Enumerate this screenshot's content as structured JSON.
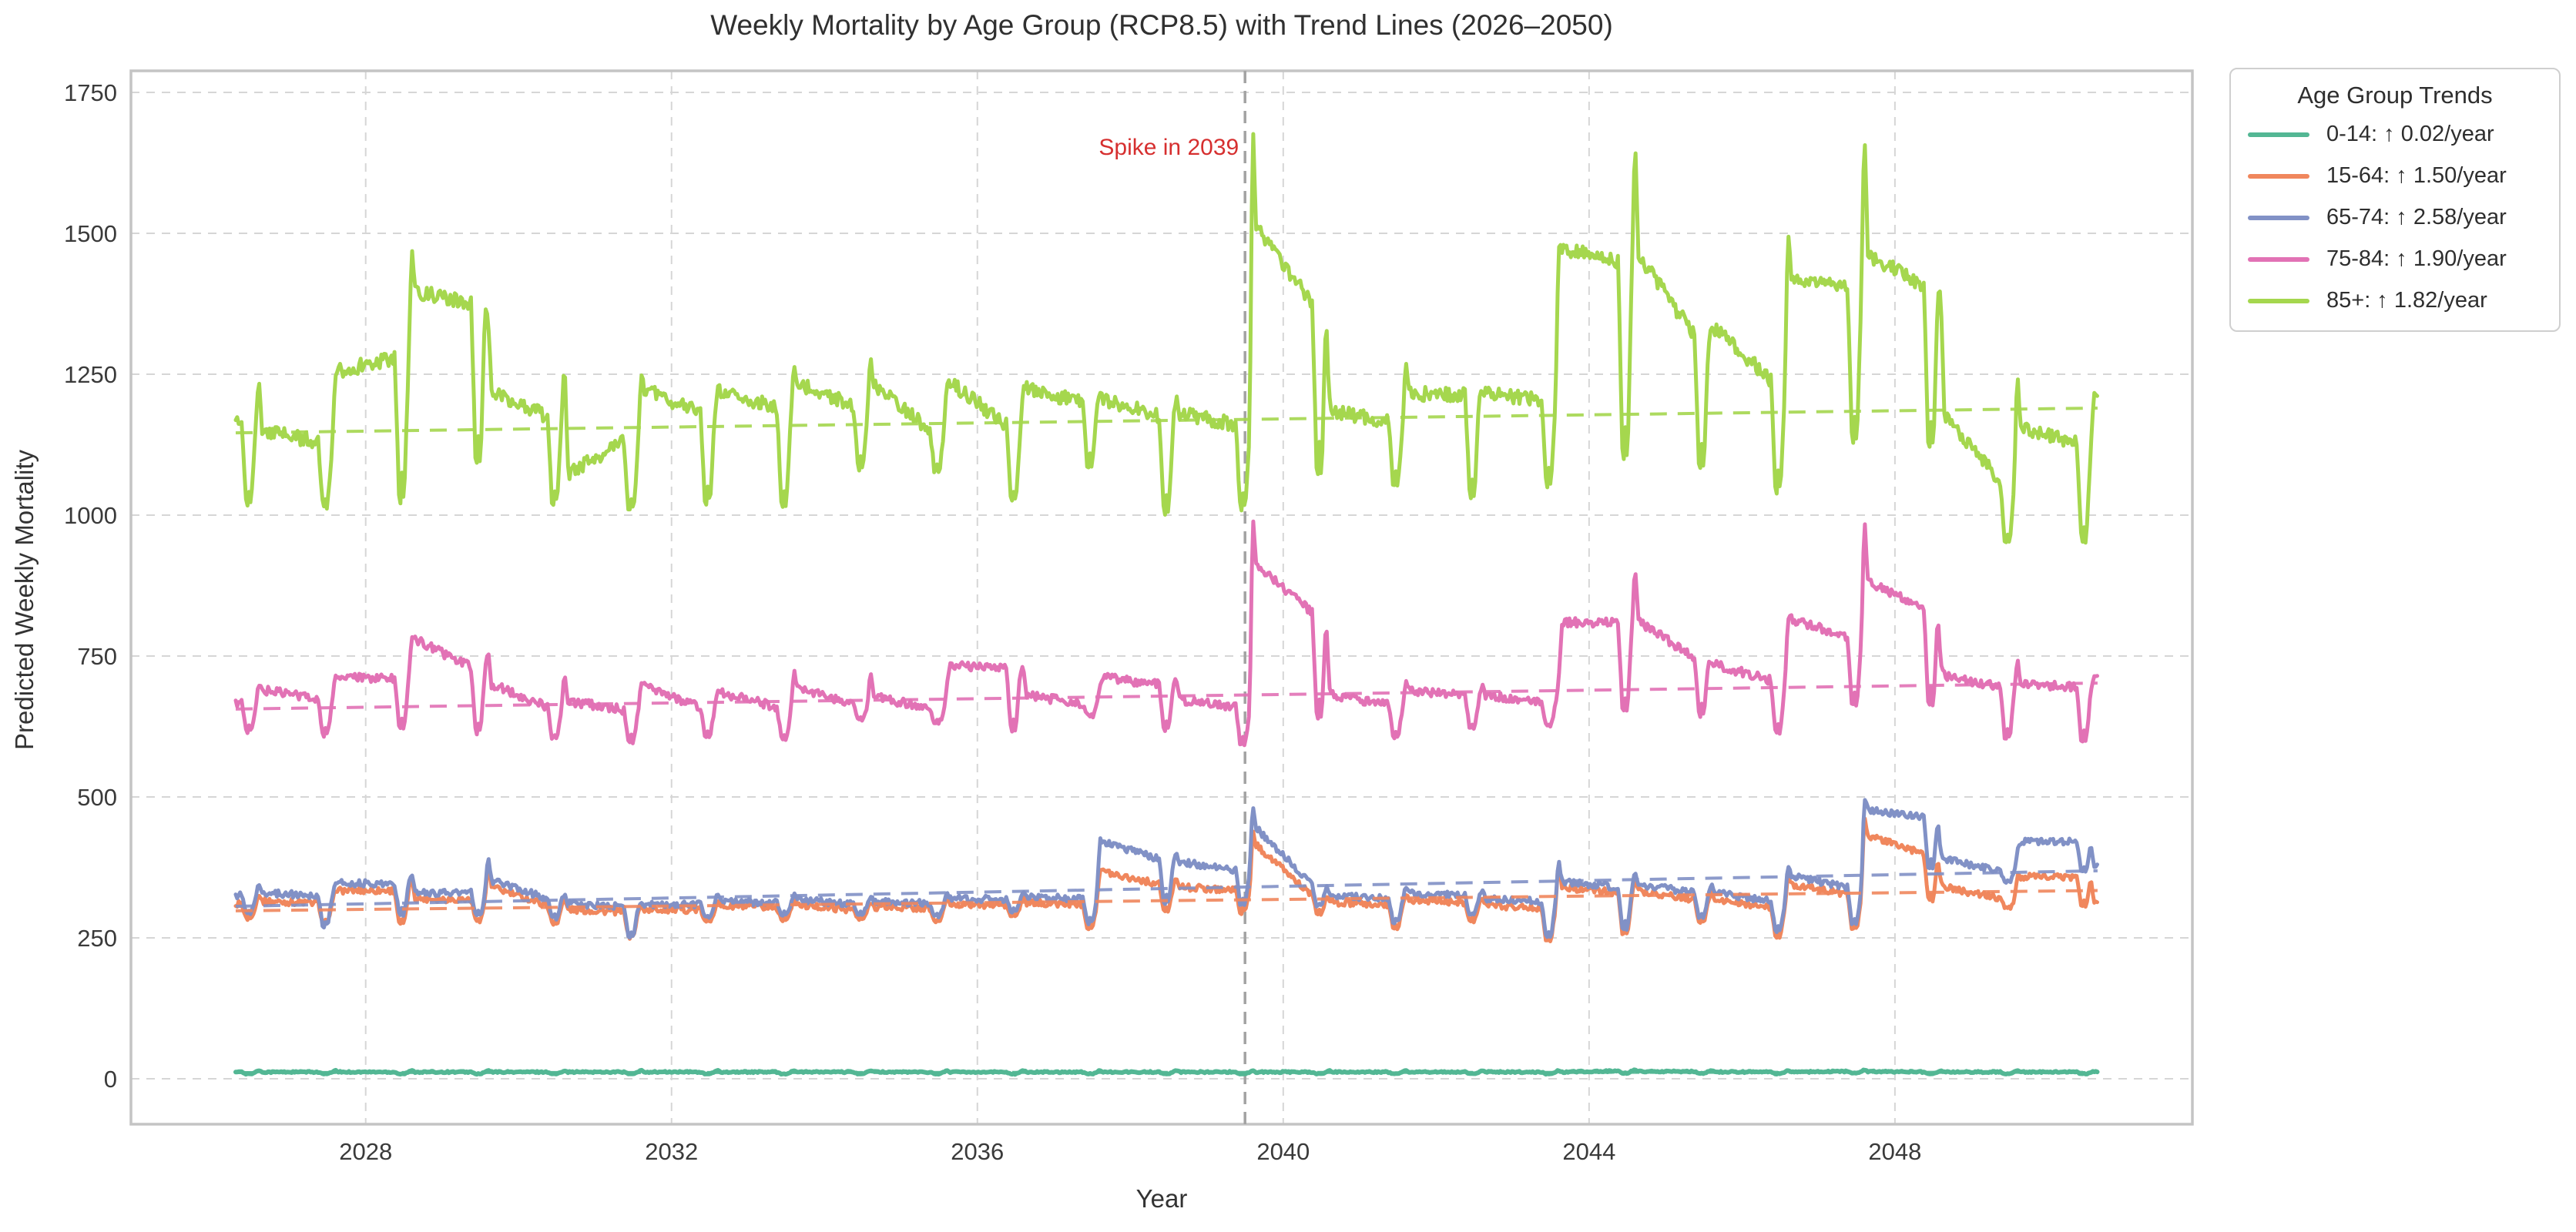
{
  "chart_data": {
    "type": "line",
    "title": "Weekly Mortality by Age Group (RCP8.5) with Trend Lines (2026–2050)",
    "xlabel": "Year",
    "ylabel": "Predicted Weekly Mortality",
    "legend_title": "Age Group Trends",
    "legend_position": "outside-top-right",
    "grid": true,
    "x_ticks": [
      2028,
      2032,
      2036,
      2040,
      2044,
      2048
    ],
    "y_ticks": [
      0,
      250,
      500,
      750,
      1000,
      1250,
      1500,
      1750
    ],
    "xlim": [
      2024.93,
      2051.89
    ],
    "ylim": [
      -80.6,
      1788.3
    ],
    "x_start": 2026.3,
    "x_end": 2050.65,
    "points_per_year": 52,
    "vline": {
      "x": 2039.5,
      "color": "#a3a3a3",
      "style": "dashed"
    },
    "annotation": {
      "text": "Spike in 2039",
      "color": "#d62f2f",
      "x": 2039.4,
      "y": 1650
    },
    "cycles_format": [
      "year",
      "plateau_end_value",
      "summer_dip_value",
      "winter_spike_value",
      "post_spike_value"
    ],
    "cycle_phases": {
      "drop": 0.38,
      "dip": 0.445,
      "jag1": 0.468,
      "jag2": 0.5,
      "recover": 0.56,
      "spike": 0.6,
      "post": 0.645
    },
    "series": [
      {
        "name": "0-14",
        "legend_label": "0-14: ↑ 0.02/year",
        "color": "#53b794",
        "width": 6,
        "noise": 1.3,
        "trend": {
          "start": 11,
          "end": 11.5,
          "rate_per_year": 0.02
        },
        "cycles": [
          [
            2026,
            12,
            8,
            15,
            12
          ],
          [
            2027,
            12,
            8,
            15,
            12
          ],
          [
            2028,
            12,
            8,
            15,
            12
          ],
          [
            2029,
            12,
            8,
            15,
            12
          ],
          [
            2030,
            12,
            8,
            15,
            12
          ],
          [
            2031,
            12,
            8,
            15,
            12
          ],
          [
            2032,
            12,
            8,
            15,
            12
          ],
          [
            2033,
            12,
            8,
            15,
            12
          ],
          [
            2034,
            12,
            8,
            15,
            12
          ],
          [
            2035,
            12,
            8,
            15,
            12
          ],
          [
            2036,
            12,
            8,
            15,
            12
          ],
          [
            2037,
            12,
            8,
            15,
            12
          ],
          [
            2038,
            12,
            8,
            15,
            12
          ],
          [
            2039,
            12,
            8,
            15,
            12
          ],
          [
            2040,
            12,
            8,
            15,
            12
          ],
          [
            2041,
            12,
            8,
            15,
            12
          ],
          [
            2042,
            12,
            8,
            15,
            12
          ],
          [
            2043,
            12,
            8,
            15,
            12
          ],
          [
            2044,
            14,
            9,
            16,
            13
          ],
          [
            2045,
            13,
            9,
            15,
            12
          ],
          [
            2046,
            12,
            8,
            15,
            12
          ],
          [
            2047,
            13,
            9,
            16,
            13
          ],
          [
            2048,
            12,
            8,
            15,
            12
          ],
          [
            2049,
            12,
            8,
            15,
            12
          ],
          [
            2050,
            12,
            8,
            13,
            12
          ]
        ]
      },
      {
        "name": "15-64",
        "legend_label": "15-64: ↑ 1.50/year",
        "color": "#f0875d",
        "width": 5,
        "noise": 6,
        "trend": {
          "start": 298,
          "end": 334,
          "rate_per_year": 1.5
        },
        "cycles": [
          [
            2026,
            310,
            280,
            330,
            315
          ],
          [
            2027,
            312,
            270,
            335,
            334
          ],
          [
            2028,
            334,
            265,
            363,
            320
          ],
          [
            2029,
            318,
            275,
            385,
            340
          ],
          [
            2030,
            308,
            270,
            320,
            300
          ],
          [
            2031,
            296,
            245,
            308,
            300
          ],
          [
            2032,
            300,
            275,
            320,
            306
          ],
          [
            2033,
            303,
            280,
            320,
            308
          ],
          [
            2034,
            300,
            280,
            315,
            305
          ],
          [
            2035,
            302,
            275,
            320,
            310
          ],
          [
            2036,
            308,
            285,
            325,
            312
          ],
          [
            2037,
            310,
            262,
            372,
            368
          ],
          [
            2038,
            345,
            290,
            360,
            340
          ],
          [
            2039,
            335,
            290,
            440,
            415
          ],
          [
            2040,
            325,
            288,
            318,
            312
          ],
          [
            2041,
            308,
            262,
            328,
            318
          ],
          [
            2042,
            313,
            275,
            322,
            308
          ],
          [
            2043,
            303,
            238,
            390,
            340
          ],
          [
            2044,
            330,
            245,
            360,
            333
          ],
          [
            2045,
            318,
            270,
            333,
            318
          ],
          [
            2046,
            303,
            245,
            365,
            345
          ],
          [
            2047,
            328,
            255,
            470,
            432
          ],
          [
            2048,
            398,
            305,
            350,
            340
          ],
          [
            2049,
            320,
            300,
            360,
            358
          ],
          [
            2050,
            358,
            300,
            315,
            315
          ]
        ]
      },
      {
        "name": "65-74",
        "legend_label": "65-74: ↑ 2.58/year",
        "color": "#8191c6",
        "width": 5,
        "noise": 6,
        "trend": {
          "start": 306,
          "end": 369,
          "rate_per_year": 2.58
        },
        "cycles": [
          [
            2026,
            325,
            290,
            346,
            330
          ],
          [
            2027,
            325,
            264,
            350,
            347
          ],
          [
            2028,
            346,
            284,
            368,
            330
          ],
          [
            2029,
            330,
            284,
            397,
            352
          ],
          [
            2030,
            320,
            279,
            330,
            310
          ],
          [
            2031,
            305,
            245,
            315,
            308
          ],
          [
            2032,
            310,
            285,
            330,
            315
          ],
          [
            2033,
            312,
            290,
            330,
            318
          ],
          [
            2034,
            310,
            290,
            325,
            315
          ],
          [
            2035,
            312,
            285,
            330,
            320
          ],
          [
            2036,
            318,
            295,
            335,
            322
          ],
          [
            2037,
            320,
            270,
            425,
            420
          ],
          [
            2038,
            390,
            300,
            400,
            385
          ],
          [
            2039,
            370,
            300,
            490,
            445
          ],
          [
            2040,
            345,
            300,
            330,
            325
          ],
          [
            2041,
            320,
            272,
            340,
            330
          ],
          [
            2042,
            325,
            285,
            335,
            320
          ],
          [
            2043,
            315,
            245,
            390,
            350
          ],
          [
            2044,
            340,
            255,
            370,
            345
          ],
          [
            2045,
            330,
            280,
            345,
            330
          ],
          [
            2046,
            315,
            255,
            380,
            360
          ],
          [
            2047,
            340,
            265,
            500,
            477
          ],
          [
            2048,
            465,
            360,
            400,
            390
          ],
          [
            2049,
            368,
            345,
            405,
            421
          ],
          [
            2050,
            421,
            362,
            378,
            378
          ]
        ]
      },
      {
        "name": "75-84",
        "legend_label": "75-84: ↑ 1.90/year",
        "color": "#e272b5",
        "width": 5,
        "noise": 8,
        "trend": {
          "start": 656,
          "end": 702,
          "rate_per_year": 1.9
        },
        "cycles": [
          [
            2026,
            665,
            608,
            700,
            690
          ],
          [
            2027,
            675,
            600,
            718,
            712
          ],
          [
            2028,
            710,
            612,
            788,
            780
          ],
          [
            2029,
            730,
            600,
            760,
            700
          ],
          [
            2030,
            660,
            595,
            725,
            670
          ],
          [
            2031,
            655,
            590,
            700,
            695
          ],
          [
            2032,
            660,
            600,
            692,
            685
          ],
          [
            2033,
            660,
            595,
            725,
            695
          ],
          [
            2034,
            665,
            635,
            722,
            680
          ],
          [
            2035,
            655,
            630,
            700,
            732
          ],
          [
            2036,
            730,
            605,
            730,
            680
          ],
          [
            2037,
            665,
            640,
            700,
            712
          ],
          [
            2038,
            700,
            610,
            715,
            672
          ],
          [
            2039,
            660,
            585,
            1000,
            912
          ],
          [
            2040,
            828,
            612,
            700,
            680
          ],
          [
            2041,
            665,
            595,
            705,
            690
          ],
          [
            2042,
            680,
            615,
            700,
            680
          ],
          [
            2043,
            670,
            618,
            700,
            810
          ],
          [
            2044,
            810,
            630,
            914,
            811
          ],
          [
            2045,
            748,
            630,
            735,
            735
          ],
          [
            2046,
            707,
            602,
            820,
            815
          ],
          [
            2047,
            785,
            644,
            1000,
            883
          ],
          [
            2048,
            835,
            640,
            735,
            715
          ],
          [
            2049,
            695,
            591,
            746,
            700
          ],
          [
            2050,
            695,
            586,
            714,
            714
          ]
        ]
      },
      {
        "name": "85+",
        "legend_label": "85+: ↑ 1.82/year",
        "color": "#a5d74e",
        "width": 5,
        "noise": 13,
        "trend": {
          "start": 1146,
          "end": 1190,
          "rate_per_year": 1.82
        },
        "cycles": [
          [
            2026,
            1165,
            1005,
            1245,
            1150
          ],
          [
            2027,
            1130,
            1000,
            1240,
            1255
          ],
          [
            2028,
            1280,
            995,
            1475,
            1397
          ],
          [
            2029,
            1375,
            1055,
            1355,
            1220
          ],
          [
            2030,
            1175,
            1000,
            1272,
            1075
          ],
          [
            2031,
            1130,
            990,
            1260,
            1225
          ],
          [
            2032,
            1180,
            1000,
            1230,
            1220
          ],
          [
            2033,
            1190,
            995,
            1265,
            1235
          ],
          [
            2034,
            1195,
            1070,
            1280,
            1230
          ],
          [
            2035,
            1150,
            1065,
            1235,
            1235
          ],
          [
            2036,
            1160,
            1005,
            1230,
            1225
          ],
          [
            2037,
            1200,
            1070,
            1220,
            1205
          ],
          [
            2038,
            1175,
            985,
            1215,
            1180
          ],
          [
            2039,
            1160,
            990,
            1703,
            1510
          ],
          [
            2040,
            1375,
            1035,
            1205,
            1185
          ],
          [
            2041,
            1165,
            1040,
            1285,
            1215
          ],
          [
            2042,
            1215,
            1010,
            1220,
            1216
          ],
          [
            2043,
            1205,
            1032,
            1482,
            1474
          ],
          [
            2044,
            1448,
            1050,
            1672,
            1462
          ],
          [
            2045,
            1318,
            1053,
            1337,
            1330
          ],
          [
            2046,
            1240,
            1015,
            1514,
            1423
          ],
          [
            2047,
            1405,
            1100,
            1705,
            1462
          ],
          [
            2048,
            1408,
            1080,
            1395,
            1180
          ],
          [
            2049,
            1061,
            935,
            1264,
            1153
          ],
          [
            2050,
            1129,
            930,
            1211,
            1211
          ]
        ]
      }
    ],
    "style": {
      "grid_color": "#d6d6d6",
      "spine_color": "#c4c4c4",
      "tick_color": "#3a3a3a",
      "background": "#ffffff"
    }
  }
}
